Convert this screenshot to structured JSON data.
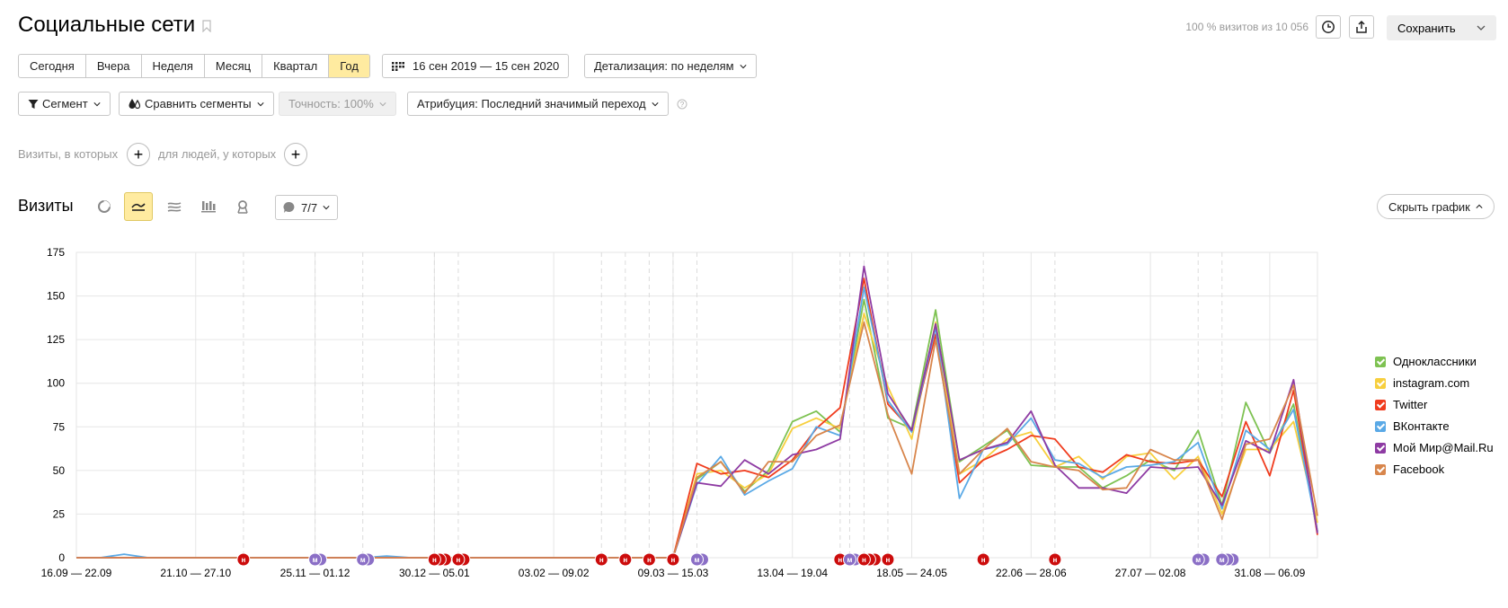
{
  "header": {
    "title": "Социальные сети",
    "visits_info": "100 % визитов из 10 056",
    "save_label": "Сохранить"
  },
  "period_tabs": [
    {
      "label": "Сегодня",
      "active": false
    },
    {
      "label": "Вчера",
      "active": false
    },
    {
      "label": "Неделя",
      "active": false
    },
    {
      "label": "Месяц",
      "active": false
    },
    {
      "label": "Квартал",
      "active": false
    },
    {
      "label": "Год",
      "active": true
    }
  ],
  "date_range": "16 сен 2019 — 15 сен 2020",
  "detail": "Детализация: по неделям",
  "filters": {
    "segment": "Сегмент",
    "compare": "Сравнить сегменты",
    "accuracy": "Точность: 100%",
    "attribution": "Атрибуция: Последний значимый переход"
  },
  "conditions": {
    "visits_label": "Визиты, в которых",
    "people_label": "для людей, у которых"
  },
  "chart_section": {
    "title": "Визиты",
    "annotations_label": "7/7",
    "hide_label": "Скрыть график"
  },
  "colors": {
    "accent": "#ffeba0",
    "Одноклассники": "#7ec252",
    "instagram.com": "#f7cf3e",
    "Twitter": "#f03c1e",
    "ВКонтакте": "#5aa9e6",
    "Мой Мир@Mail.Ru": "#8e3ba3",
    "Facebook": "#d8864c"
  },
  "chart_data": {
    "type": "line",
    "ylim": [
      0,
      175
    ],
    "yticks": [
      0,
      25,
      50,
      75,
      100,
      125,
      150,
      175
    ],
    "xtick_labels": [
      {
        "index": 0,
        "label": "16.09 — 22.09"
      },
      {
        "index": 5,
        "label": "21.10 — 27.10"
      },
      {
        "index": 10,
        "label": "25.11 — 01.12"
      },
      {
        "index": 15,
        "label": "30.12 — 05.01"
      },
      {
        "index": 20,
        "label": "03.02 — 09.02"
      },
      {
        "index": 25,
        "label": "09.03 — 15.03"
      },
      {
        "index": 30,
        "label": "13.04 — 19.04"
      },
      {
        "index": 35,
        "label": "18.05 — 24.05"
      },
      {
        "index": 40,
        "label": "22.06 — 28.06"
      },
      {
        "index": 45,
        "label": "27.07 — 02.08"
      },
      {
        "index": 50,
        "label": "31.08 — 06.09"
      }
    ],
    "n_points": 53,
    "series": [
      {
        "name": "Одноклассники",
        "values": [
          0,
          0,
          0,
          0,
          0,
          0,
          0,
          0,
          0,
          0,
          0,
          0,
          0,
          0,
          0,
          0,
          0,
          0,
          0,
          0,
          0,
          0,
          0,
          0,
          0,
          0,
          45,
          55,
          38,
          50,
          78,
          84,
          72,
          148,
          80,
          74,
          142,
          55,
          64,
          73,
          53,
          52,
          52,
          40,
          47,
          56,
          50,
          73,
          30,
          89,
          60,
          88,
          15
        ]
      },
      {
        "name": "instagram.com",
        "values": [
          0,
          0,
          0,
          0,
          0,
          0,
          0,
          0,
          0,
          0,
          0,
          0,
          0,
          0,
          0,
          0,
          0,
          0,
          0,
          0,
          0,
          0,
          0,
          0,
          0,
          0,
          48,
          50,
          40,
          48,
          74,
          80,
          74,
          140,
          98,
          68,
          135,
          48,
          56,
          68,
          72,
          52,
          58,
          45,
          58,
          60,
          45,
          58,
          25,
          62,
          62,
          78,
          20
        ]
      },
      {
        "name": "Twitter",
        "values": [
          0,
          0,
          0,
          0,
          0,
          0,
          0,
          0,
          0,
          0,
          0,
          0,
          0,
          0,
          0,
          0,
          0,
          0,
          0,
          0,
          0,
          0,
          0,
          0,
          0,
          0,
          54,
          48,
          50,
          46,
          56,
          74,
          86,
          160,
          88,
          73,
          128,
          43,
          56,
          62,
          70,
          68,
          52,
          49,
          59,
          55,
          54,
          56,
          35,
          78,
          47,
          96,
          13
        ]
      },
      {
        "name": "ВКонтакте",
        "values": [
          0,
          0,
          2,
          0,
          0,
          0,
          0,
          0,
          0,
          0,
          0,
          0,
          0,
          1,
          0,
          0,
          0,
          0,
          0,
          0,
          0,
          0,
          0,
          0,
          0,
          0,
          42,
          58,
          36,
          44,
          51,
          75,
          70,
          155,
          90,
          72,
          132,
          34,
          62,
          65,
          80,
          56,
          54,
          46,
          52,
          53,
          55,
          66,
          28,
          73,
          62,
          85,
          15
        ]
      },
      {
        "name": "Мой Мир@Mail.Ru",
        "values": [
          0,
          0,
          0,
          0,
          0,
          0,
          0,
          0,
          0,
          0,
          0,
          0,
          0,
          0,
          0,
          0,
          0,
          0,
          0,
          0,
          0,
          0,
          0,
          0,
          0,
          0,
          43,
          41,
          56,
          48,
          59,
          62,
          68,
          167,
          94,
          73,
          134,
          56,
          62,
          66,
          84,
          53,
          40,
          40,
          37,
          52,
          51,
          52,
          30,
          67,
          60,
          102,
          14
        ]
      },
      {
        "name": "Facebook",
        "values": [
          0,
          0,
          0,
          0,
          0,
          0,
          0,
          0,
          0,
          0,
          0,
          0,
          0,
          0,
          0,
          0,
          0,
          0,
          0,
          0,
          0,
          0,
          0,
          0,
          0,
          0,
          46,
          55,
          37,
          55,
          55,
          70,
          76,
          135,
          82,
          48,
          125,
          48,
          62,
          74,
          55,
          52,
          50,
          39,
          40,
          62,
          56,
          56,
          22,
          65,
          68,
          99,
          24
        ]
      }
    ],
    "annotations": [
      {
        "x": 7,
        "kind": "н",
        "count": 1
      },
      {
        "x": 10,
        "kind": "м",
        "count": 2
      },
      {
        "x": 12,
        "kind": "м",
        "count": 2
      },
      {
        "x": 15,
        "kind": "н",
        "count": 3
      },
      {
        "x": 16,
        "kind": "н",
        "count": 2
      },
      {
        "x": 22,
        "kind": "н",
        "count": 1
      },
      {
        "x": 23,
        "kind": "н",
        "count": 1
      },
      {
        "x": 24,
        "kind": "н",
        "count": 1
      },
      {
        "x": 25,
        "kind": "н",
        "count": 1
      },
      {
        "x": 26,
        "kind": "м",
        "count": 2
      },
      {
        "x": 32,
        "kind": "н",
        "count": 1
      },
      {
        "x": 32.4,
        "kind": "м",
        "count": 2
      },
      {
        "x": 33,
        "kind": "н",
        "count": 3
      },
      {
        "x": 34,
        "kind": "н",
        "count": 1
      },
      {
        "x": 38,
        "kind": "н",
        "count": 1
      },
      {
        "x": 41,
        "kind": "н",
        "count": 1
      },
      {
        "x": 47,
        "kind": "м",
        "count": 2
      },
      {
        "x": 48,
        "kind": "м",
        "count": 3
      }
    ]
  }
}
